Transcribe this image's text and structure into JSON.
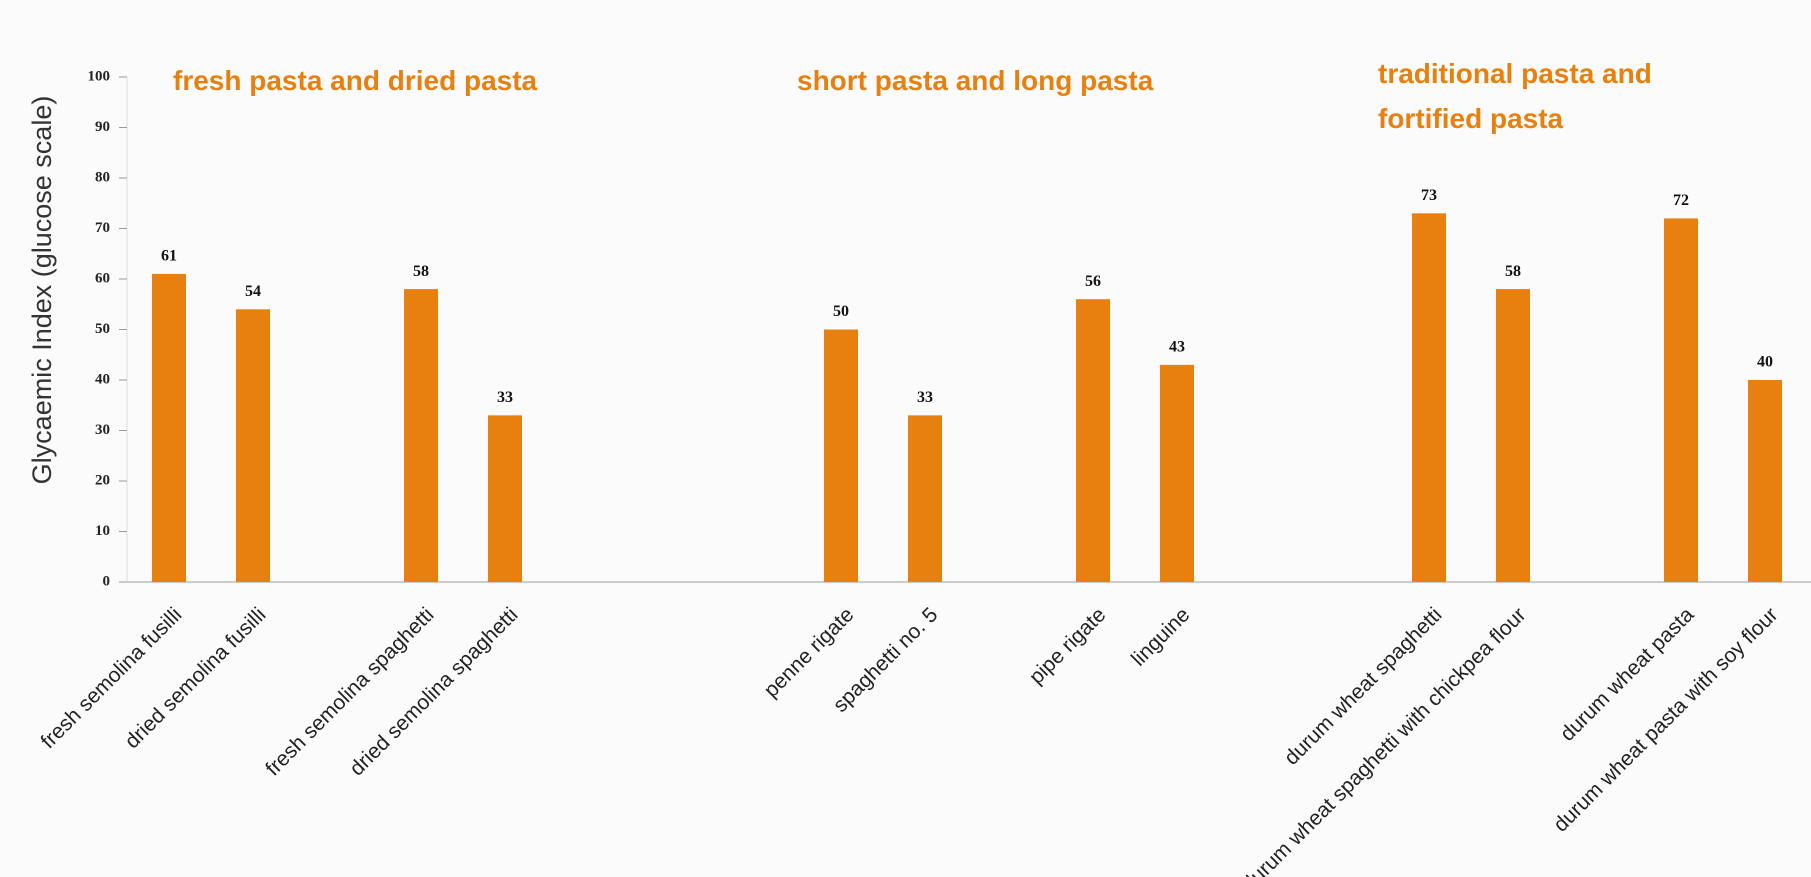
{
  "chart_data": {
    "type": "bar",
    "y_label": "Glycaemic Index (glucose scale)",
    "annotations": [
      "fresh pasta and dried pasta",
      "short pasta and long pasta",
      "traditional pasta and fortified pasta"
    ],
    "categories": [
      "fresh semolina fusilli",
      "dried semolina fusilli",
      null,
      "fresh semolina spaghetti",
      "dried semolina spaghetti",
      null,
      null,
      null,
      "penne rigate",
      "spaghetti no. 5",
      null,
      "pipe rigate",
      "linguine",
      null,
      null,
      "durum wheat spaghetti",
      "durum wheat spaghetti with chickpea flour",
      null,
      "durum wheat pasta",
      "durum wheat pasta with soy flour"
    ],
    "values": [
      61,
      54,
      null,
      58,
      33,
      null,
      null,
      null,
      50,
      33,
      null,
      56,
      43,
      null,
      null,
      73,
      58,
      null,
      72,
      40
    ],
    "color": "#e8800f",
    "ylim": [
      0,
      100
    ],
    "yticks": [
      0,
      10,
      20,
      30,
      40,
      50,
      60,
      70,
      80,
      90,
      100
    ]
  }
}
